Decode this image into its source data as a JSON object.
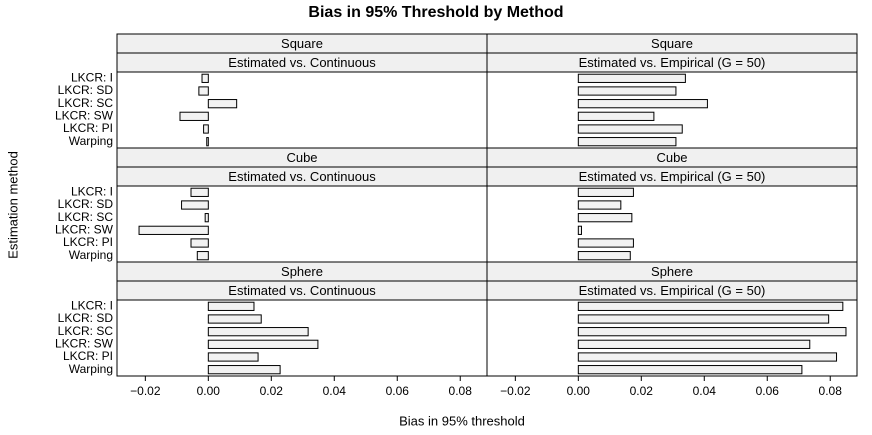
{
  "chart_data": {
    "type": "bar",
    "title": "Bias in 95% Threshold by Method",
    "xlabel": "Bias in 95% threshold",
    "ylabel": "Estimation method",
    "categories": [
      "LKCR: I",
      "LKCR: SD",
      "LKCR: SC",
      "LKCR: SW",
      "LKCR: PI",
      "Warping"
    ],
    "xlim": [
      -0.029,
      0.0885
    ],
    "xticks": [
      {
        "value": -0.02,
        "label": "−0.02"
      },
      {
        "value": 0,
        "label": "0.00"
      },
      {
        "value": 0.02,
        "label": "0.02"
      },
      {
        "value": 0.04,
        "label": "0.04"
      },
      {
        "value": 0.06,
        "label": "0.06"
      },
      {
        "value": 0.08,
        "label": "0.08"
      }
    ],
    "color": "#f2f2f2",
    "panels": [
      {
        "shape": "Square",
        "comparison": "Estimated vs. Continuous",
        "values": [
          -0.002,
          -0.003,
          0.009,
          -0.009,
          -0.0015,
          -0.0005
        ]
      },
      {
        "shape": "Square",
        "comparison": "Estimated vs. Empirical (G = 50)",
        "values": [
          0.034,
          0.031,
          0.041,
          0.024,
          0.033,
          0.031
        ]
      },
      {
        "shape": "Cube",
        "comparison": "Estimated vs. Continuous",
        "values": [
          -0.0055,
          -0.0085,
          -0.001,
          -0.022,
          -0.0055,
          -0.0035
        ]
      },
      {
        "shape": "Cube",
        "comparison": "Estimated vs. Empirical (G = 50)",
        "values": [
          0.0175,
          0.0135,
          0.017,
          0.001,
          0.0175,
          0.0165
        ]
      },
      {
        "shape": "Sphere",
        "comparison": "Estimated vs. Continuous",
        "values": [
          0.0145,
          0.0168,
          0.0317,
          0.0348,
          0.0158,
          0.0228
        ]
      },
      {
        "shape": "Sphere",
        "comparison": "Estimated vs. Empirical (G = 50)",
        "values": [
          0.084,
          0.0795,
          0.085,
          0.0735,
          0.082,
          0.071
        ]
      }
    ]
  }
}
